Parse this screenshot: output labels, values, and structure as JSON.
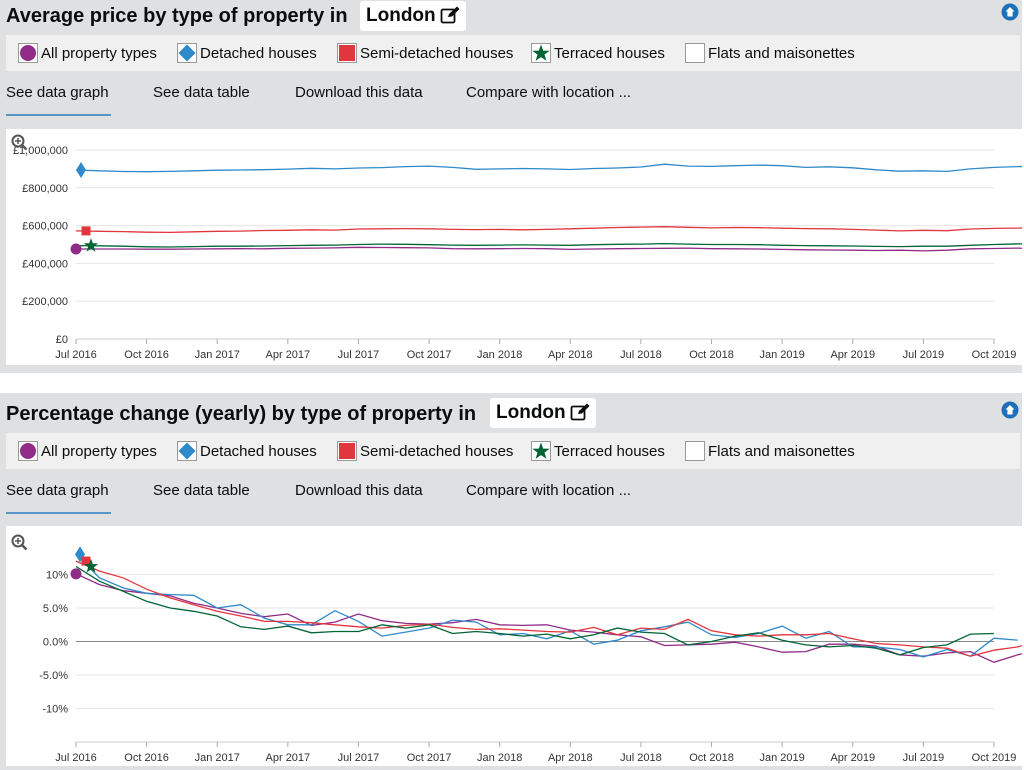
{
  "panels": [
    {
      "title": "Average price by type of property in",
      "location": "London",
      "legend": [
        "All property types",
        "Detached houses",
        "Semi-detached houses",
        "Terraced houses",
        "Flats and maisonettes"
      ],
      "tabs": [
        "See data graph",
        "See data table",
        "Download this data",
        "Compare with location ..."
      ]
    },
    {
      "title": "Percentage change (yearly) by type of property in",
      "location": "London",
      "legend": [
        "All property types",
        "Detached houses",
        "Semi-detached houses",
        "Terraced houses",
        "Flats and maisonettes"
      ],
      "tabs": [
        "See data graph",
        "See data table",
        "Download this data",
        "Compare with location ..."
      ]
    }
  ],
  "colors": {
    "all": "#912b88",
    "detached": "#2e8aca",
    "semi": "#e2363e",
    "terraced": "#006435",
    "accent": "#5694ca",
    "panel_bg": "#dee0e2"
  },
  "icons": [
    "pencil-edit-icon",
    "arrow-up-circle-icon",
    "zoom-icon"
  ],
  "chart_data": [
    {
      "type": "line",
      "x_tick_labels": [
        "Jul 2016",
        "Oct 2016",
        "Jan 2017",
        "Apr 2017",
        "Jul 2017",
        "Oct 2017",
        "Jan 2018",
        "Apr 2018",
        "Jul 2018",
        "Oct 2018",
        "Jan 2019",
        "Apr 2019",
        "Jul 2019",
        "Oct 2019"
      ],
      "x_start": "2016-07",
      "x_end": "2019-10",
      "x_step": "month",
      "ylim": [
        0,
        1000000
      ],
      "y_ticks": [
        0,
        200000,
        400000,
        600000,
        800000,
        1000000
      ],
      "y_tick_labels": [
        "£0",
        "£200,000",
        "£400,000",
        "£600,000",
        "£800,000",
        "£1,000,000"
      ],
      "grid": true,
      "series": [
        {
          "name": "All property types",
          "key": "all",
          "values": [
            476000,
            476000,
            476000,
            475000,
            475000,
            476000,
            477000,
            478000,
            477000,
            480000,
            481000,
            482000,
            485000,
            484000,
            483000,
            482000,
            478000,
            477000,
            478000,
            479000,
            478000,
            474000,
            476000,
            478000,
            479000,
            480000,
            481000,
            478000,
            477000,
            476000,
            474000,
            472000,
            471000,
            470000,
            468000,
            470000,
            466000,
            470000,
            477000,
            479000,
            481000,
            478000,
            481000
          ]
        },
        {
          "name": "Detached houses",
          "key": "detached",
          "values": [
            894000,
            890000,
            886000,
            885000,
            887000,
            890000,
            893000,
            894000,
            896000,
            899000,
            903000,
            900000,
            905000,
            907000,
            912000,
            915000,
            908000,
            898000,
            900000,
            902000,
            900000,
            897000,
            902000,
            905000,
            910000,
            925000,
            915000,
            913000,
            917000,
            920000,
            917000,
            908000,
            911000,
            906000,
            895000,
            888000,
            890000,
            887000,
            900000,
            908000,
            912000,
            914000,
            915000
          ]
        },
        {
          "name": "Semi-detached houses",
          "key": "semi",
          "values": [
            572000,
            570000,
            568000,
            565000,
            564000,
            567000,
            570000,
            571000,
            574000,
            575000,
            578000,
            576000,
            582000,
            583000,
            584000,
            583000,
            580000,
            579000,
            580000,
            578000,
            580000,
            583000,
            586000,
            590000,
            592000,
            594000,
            591000,
            588000,
            590000,
            589000,
            586000,
            584000,
            583000,
            580000,
            576000,
            572000,
            575000,
            573000,
            582000,
            585000,
            587000,
            589000,
            588000
          ]
        },
        {
          "name": "Terraced houses",
          "key": "terraced",
          "values": [
            494000,
            493000,
            491000,
            488000,
            487000,
            489000,
            491000,
            491000,
            492000,
            494000,
            496000,
            497000,
            500000,
            502000,
            501000,
            499000,
            497000,
            496000,
            497000,
            498000,
            497000,
            496000,
            499000,
            501000,
            502000,
            505000,
            502000,
            500000,
            500000,
            499000,
            496000,
            494000,
            493000,
            492000,
            490000,
            489000,
            491000,
            491000,
            496000,
            500000,
            503000,
            504000,
            504000
          ]
        }
      ]
    },
    {
      "type": "line",
      "x_tick_labels": [
        "Jul 2016",
        "Oct 2016",
        "Jan 2017",
        "Apr 2017",
        "Jul 2017",
        "Oct 2017",
        "Jan 2018",
        "Apr 2018",
        "Jul 2018",
        "Oct 2018",
        "Jan 2019",
        "Apr 2019",
        "Jul 2019",
        "Oct 2019"
      ],
      "x_start": "2016-07",
      "x_end": "2019-10",
      "x_step": "month",
      "ylim": [
        -15,
        15
      ],
      "y_ticks": [
        10,
        5,
        0,
        -5,
        -10
      ],
      "y_tick_labels": [
        "10%",
        "5.0%",
        "0.0%",
        "-5.0%",
        "-10%"
      ],
      "grid": true,
      "series": [
        {
          "name": "All property types",
          "key": "all",
          "values": [
            10.1,
            8.5,
            7.6,
            7.2,
            6.8,
            5.7,
            5.0,
            4.2,
            3.7,
            4.1,
            2.4,
            2.9,
            4.1,
            3.1,
            2.7,
            2.6,
            2.8,
            3.3,
            2.5,
            2.4,
            2.5,
            1.7,
            1.4,
            1.0,
            0.7,
            -0.6,
            -0.5,
            -0.4,
            -0.1,
            -0.8,
            -1.6,
            -1.5,
            -0.4,
            -0.4,
            -0.7,
            -2.0,
            -2.2,
            -1.7,
            -1.5,
            -3.1,
            -2.0,
            -1.1,
            -0.9,
            -0.9,
            0.6
          ]
        },
        {
          "name": "Detached houses",
          "key": "detached",
          "values": [
            13.0,
            9.5,
            8.0,
            7.2,
            7.0,
            6.9,
            5.0,
            5.5,
            3.5,
            2.5,
            2.5,
            4.6,
            3.0,
            0.8,
            1.4,
            2.0,
            3.2,
            2.9,
            1.0,
            1.2,
            0.4,
            1.6,
            -0.4,
            0.2,
            1.6,
            2.2,
            2.9,
            1.0,
            0.6,
            1.2,
            2.3,
            0.5,
            1.5,
            -0.8,
            -0.8,
            -1.2,
            -2.3,
            -1.2,
            -2.2,
            0.5,
            0.2
          ]
        },
        {
          "name": "Semi-detached houses",
          "key": "semi",
          "values": [
            12.0,
            10.5,
            9.5,
            7.8,
            6.5,
            5.5,
            4.5,
            3.8,
            3.0,
            3.0,
            2.8,
            2.5,
            2.2,
            2.0,
            2.4,
            2.6,
            2.1,
            1.8,
            1.9,
            1.7,
            1.5,
            1.4,
            2.1,
            1.0,
            2.0,
            1.8,
            3.3,
            1.6,
            1.0,
            0.8,
            1.0,
            1.0,
            1.2,
            0.4,
            -0.3,
            -0.5,
            -0.8,
            -1.0,
            -2.2,
            -1.3,
            -0.8,
            0.2,
            0.8
          ]
        },
        {
          "name": "Terraced houses",
          "key": "terraced",
          "values": [
            11.2,
            9.0,
            7.5,
            6.0,
            5.0,
            4.5,
            3.8,
            2.2,
            1.8,
            2.3,
            1.3,
            1.5,
            1.5,
            2.5,
            2.0,
            2.5,
            1.2,
            1.5,
            1.2,
            0.8,
            1.1,
            0.4,
            1.0,
            2.0,
            1.4,
            1.2,
            -0.5,
            0.0,
            0.8,
            1.3,
            0.2,
            -0.5,
            -0.8,
            -0.6,
            -1.0,
            -2.0,
            -0.9,
            -0.5,
            1.1,
            1.2
          ]
        }
      ]
    }
  ]
}
